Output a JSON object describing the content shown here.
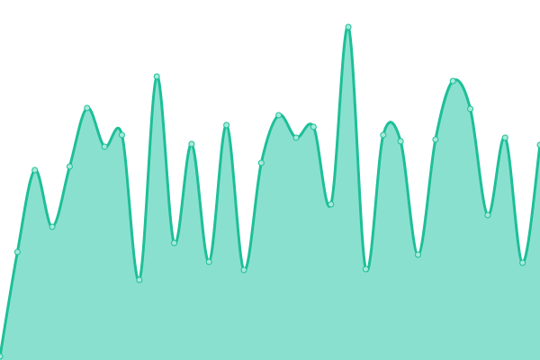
{
  "chart_data": {
    "type": "area",
    "title": "",
    "xlabel": "",
    "ylabel": "",
    "x": [
      0,
      1,
      2,
      3,
      4,
      5,
      6,
      7,
      8,
      9,
      10,
      11,
      12,
      13,
      14,
      15,
      16,
      17,
      18,
      19,
      20,
      21,
      22,
      23,
      24,
      25,
      26,
      27,
      28,
      29,
      30,
      31
    ],
    "series": [
      {
        "values": [
          4,
          120,
          211,
          148,
          215,
          280,
          237,
          250,
          89,
          315,
          130,
          240,
          109,
          261,
          100,
          219,
          272,
          247,
          259,
          173,
          370,
          101,
          250,
          243,
          117,
          245,
          310,
          279,
          161,
          247,
          108,
          239
        ]
      }
    ],
    "ylim": [
      0,
      400
    ],
    "xlim": [
      0,
      31
    ],
    "grid": false,
    "axes_visible": false,
    "smooth": true,
    "colors": {
      "line": "#1dbf98",
      "fill": "#8ae0cf",
      "marker_fill": "#a6ead9"
    }
  }
}
